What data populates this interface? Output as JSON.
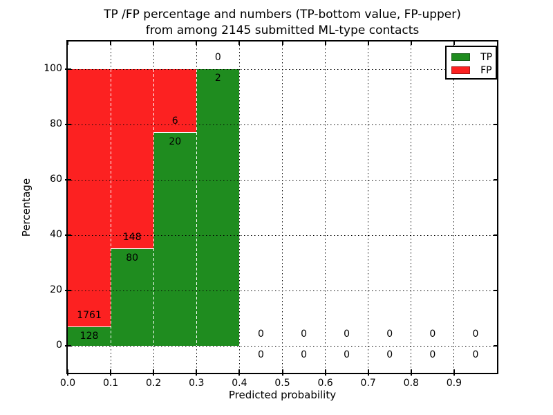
{
  "title": {
    "line1": "TP /FP percentage and numbers (TP-bottom value, FP-upper)",
    "line2": "from among 2145 submitted ML-type contacts"
  },
  "axes": {
    "xlabel": "Predicted probability",
    "ylabel": "Percentage",
    "x_ticks": [
      "0.0",
      "0.1",
      "0.2",
      "0.3",
      "0.4",
      "0.5",
      "0.6",
      "0.7",
      "0.8",
      "0.9"
    ],
    "y_ticks": [
      "0",
      "20",
      "40",
      "60",
      "80",
      "100"
    ],
    "xlim": [
      0.0,
      1.0
    ],
    "ylim_percent": [
      -10,
      110
    ],
    "grid": true,
    "grid_style": "dotted"
  },
  "legend": {
    "position": "upper right",
    "items": [
      {
        "label": "TP",
        "color": "#1f8c1f"
      },
      {
        "label": "FP",
        "color": "#fc2121"
      }
    ]
  },
  "chart_data": {
    "type": "bar",
    "stacked": true,
    "normalized_to_percent": true,
    "title": "TP /FP percentage and numbers (TP-bottom value, FP-upper) from among 2145 submitted ML-type contacts",
    "xlabel": "Predicted probability",
    "ylabel": "Percentage",
    "bin_starts": [
      0.0,
      0.1,
      0.2,
      0.3,
      0.4,
      0.5,
      0.6,
      0.7,
      0.8,
      0.9
    ],
    "bin_width": 0.1,
    "series": [
      {
        "name": "TP",
        "color": "#1f8c1f",
        "values": [
          128,
          80,
          20,
          2,
          0,
          0,
          0,
          0,
          0,
          0
        ]
      },
      {
        "name": "FP",
        "color": "#fc2121",
        "values": [
          1761,
          148,
          6,
          0,
          0,
          0,
          0,
          0,
          0,
          0
        ]
      }
    ],
    "tp_percent_of_bin": [
      6.8,
      35.1,
      76.9,
      100.0,
      0,
      0,
      0,
      0,
      0,
      0
    ],
    "total_contacts": 2145,
    "annotation_scheme": "FP count above TP/FP boundary, TP count below boundary"
  }
}
